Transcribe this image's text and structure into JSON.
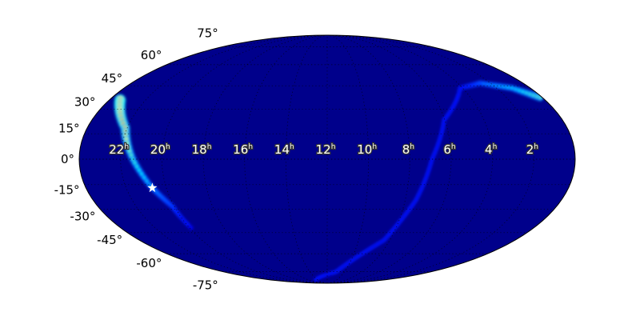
{
  "chart_data": {
    "type": "heatmap",
    "projection": "mollweide",
    "colormap": "jet",
    "background_color": "#00008b",
    "grid": true,
    "lat_ticks": [
      "75°",
      "60°",
      "45°",
      "30°",
      "15°",
      "0°",
      "-15°",
      "-30°",
      "-45°",
      "-60°",
      "-75°"
    ],
    "lat_values": [
      75,
      60,
      45,
      30,
      15,
      0,
      -15,
      -30,
      -45,
      -60,
      -75
    ],
    "ra_ticks": [
      {
        "value": 22,
        "label": "22",
        "unit": "h"
      },
      {
        "value": 20,
        "label": "20",
        "unit": "h"
      },
      {
        "value": 18,
        "label": "18",
        "unit": "h"
      },
      {
        "value": 16,
        "label": "16",
        "unit": "h"
      },
      {
        "value": 14,
        "label": "14",
        "unit": "h"
      },
      {
        "value": 12,
        "label": "12",
        "unit": "h"
      },
      {
        "value": 10,
        "label": "10",
        "unit": "h"
      },
      {
        "value": 8,
        "label": "8",
        "unit": "h"
      },
      {
        "value": 6,
        "label": "6",
        "unit": "h"
      },
      {
        "value": 4,
        "label": "4",
        "unit": "h"
      },
      {
        "value": 2,
        "label": "2",
        "unit": "h"
      }
    ],
    "probability_bands": [
      {
        "points": [
          {
            "ra": 23.4,
            "dec": 35.7,
            "p": 1.0
          },
          {
            "ra": 22.1,
            "dec": 18.5,
            "p": 0.75
          },
          {
            "ra": 21.4,
            "dec": 0,
            "p": 0.45
          },
          {
            "ra": 20.7,
            "dec": -17,
            "p": 0.3
          },
          {
            "ra": 20.1,
            "dec": -28.3,
            "p": 0.2
          },
          {
            "ra": 19.9,
            "dec": -41.9,
            "p": 0.08
          }
        ]
      },
      {
        "points": [
          {
            "ra": 0.13,
            "dec": 37.3,
            "p": 0.5
          },
          {
            "ra": 1.08,
            "dec": 43.5,
            "p": 0.35
          },
          {
            "ra": 2.64,
            "dec": 46.8,
            "p": 0.25
          },
          {
            "ra": 4.15,
            "dec": 43.5,
            "p": 0.12
          },
          {
            "ra": 6.04,
            "dec": 23.3,
            "p": 0.1
          },
          {
            "ra": 6.93,
            "dec": 0,
            "p": 0.1
          },
          {
            "ra": 7.45,
            "dec": -24.3,
            "p": 0.1
          },
          {
            "ra": 8.37,
            "dec": -50.1,
            "p": 0.1
          },
          {
            "ra": 10.97,
            "dec": -75.3,
            "p": 0.1
          },
          {
            "ra": 14.4,
            "dec": -84,
            "p": 0.06
          }
        ]
      }
    ],
    "markers": [
      {
        "symbol": "star",
        "ra": 20.7,
        "dec": -17,
        "color": "#ffffff"
      }
    ]
  }
}
